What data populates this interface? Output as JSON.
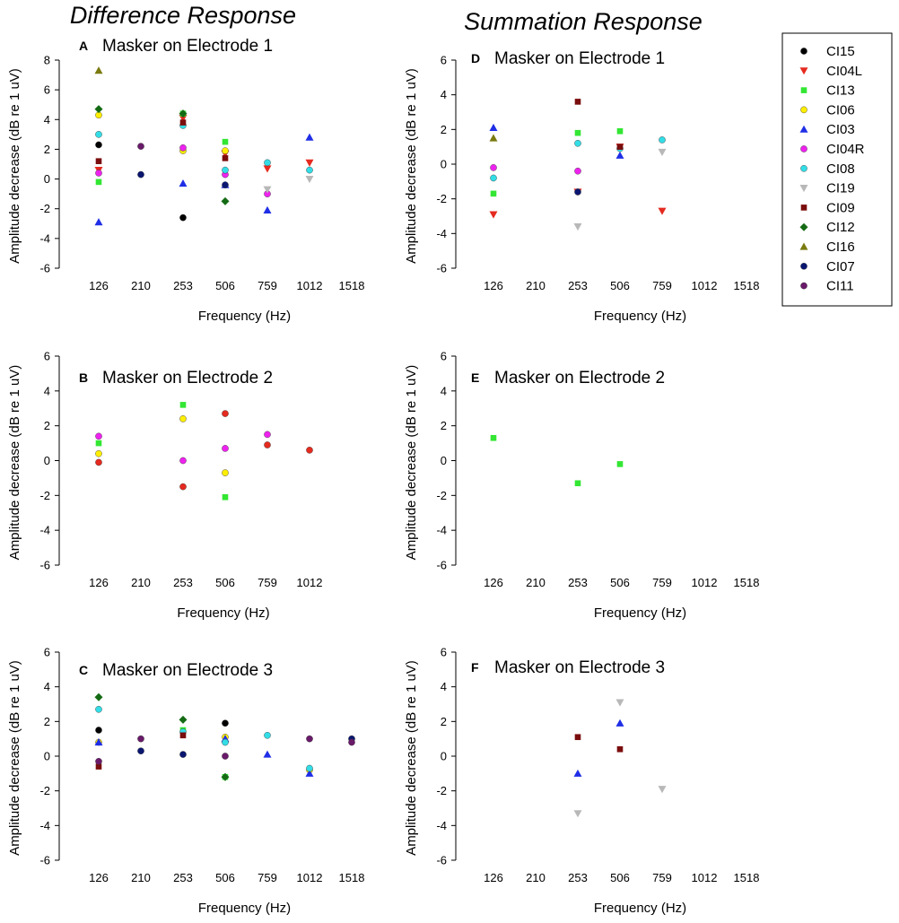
{
  "figure": {
    "column_titles": [
      "Difference Response",
      "Summation Response"
    ]
  },
  "legend": {
    "entries": [
      {
        "name": "CI15",
        "color": "#000000",
        "marker": "circle"
      },
      {
        "name": "CI04L",
        "color": "#e52a1f",
        "marker": "triangle-down"
      },
      {
        "name": "CI13",
        "color": "#33e633",
        "marker": "square"
      },
      {
        "name": "CI06",
        "color": "#ffee00",
        "marker": "circle"
      },
      {
        "name": "CI03",
        "color": "#1f2ee6",
        "marker": "triangle-up"
      },
      {
        "name": "CI04R",
        "color": "#ee22ee",
        "marker": "circle"
      },
      {
        "name": "CI08",
        "color": "#33dde6",
        "marker": "circle"
      },
      {
        "name": "CI19",
        "color": "#b8b8b8",
        "marker": "triangle-down"
      },
      {
        "name": "CI09",
        "color": "#7a0d0d",
        "marker": "square"
      },
      {
        "name": "CI12",
        "color": "#146b14",
        "marker": "diamond"
      },
      {
        "name": "CI16",
        "color": "#7a7a10",
        "marker": "triangle-up"
      },
      {
        "name": "CI07",
        "color": "#0a1670",
        "marker": "circle"
      },
      {
        "name": "CI11",
        "color": "#6a1a6a",
        "marker": "circle"
      }
    ]
  },
  "chart_data": [
    {
      "id": "A",
      "letter": "A",
      "title": "Masker on Electrode 1",
      "type": "scatter",
      "xlabel": "Frequency (Hz)",
      "ylabel": "Amplitude decrease (dB re 1 uV)",
      "categories": [
        "126",
        "210",
        "253",
        "506",
        "759",
        "1012",
        "1518"
      ],
      "ylim": [
        -6,
        8
      ],
      "yticks": [
        -6,
        -4,
        -2,
        0,
        2,
        4,
        6,
        8
      ],
      "series": [
        {
          "name": "CI15",
          "points": [
            [
              "126",
              2.3
            ],
            [
              "253",
              -2.6
            ]
          ]
        },
        {
          "name": "CI04L",
          "points": [
            [
              "126",
              0.6
            ],
            [
              "253",
              4.1
            ],
            [
              "506",
              1.7
            ],
            [
              "759",
              0.7
            ],
            [
              "1012",
              1.1
            ]
          ]
        },
        {
          "name": "CI13",
          "points": [
            [
              "126",
              -0.2
            ],
            [
              "253",
              4.4
            ],
            [
              "506",
              2.5
            ]
          ]
        },
        {
          "name": "CI06",
          "points": [
            [
              "126",
              4.3
            ],
            [
              "253",
              1.9
            ],
            [
              "506",
              1.9
            ]
          ]
        },
        {
          "name": "CI03",
          "points": [
            [
              "126",
              -2.9
            ],
            [
              "253",
              -0.3
            ],
            [
              "506",
              -0.4
            ],
            [
              "759",
              -2.1
            ],
            [
              "1012",
              2.8
            ]
          ]
        },
        {
          "name": "CI04R",
          "points": [
            [
              "126",
              0.4
            ],
            [
              "253",
              2.1
            ],
            [
              "506",
              0.3
            ],
            [
              "759",
              -1.0
            ]
          ]
        },
        {
          "name": "CI08",
          "points": [
            [
              "126",
              3.0
            ],
            [
              "253",
              3.6
            ],
            [
              "506",
              0.6
            ],
            [
              "759",
              1.1
            ],
            [
              "1012",
              0.6
            ]
          ]
        },
        {
          "name": "CI19",
          "points": [
            [
              "759",
              -0.7
            ],
            [
              "1012",
              0.0
            ]
          ]
        },
        {
          "name": "CI09",
          "points": [
            [
              "126",
              1.2
            ],
            [
              "253",
              3.8
            ],
            [
              "506",
              1.4
            ]
          ]
        },
        {
          "name": "CI12",
          "points": [
            [
              "126",
              4.7
            ],
            [
              "253",
              4.4
            ],
            [
              "506",
              -1.5
            ]
          ]
        },
        {
          "name": "CI16",
          "points": [
            [
              "126",
              7.3
            ]
          ]
        },
        {
          "name": "CI07",
          "points": [
            [
              "210",
              0.3
            ],
            [
              "506",
              -0.4
            ]
          ]
        },
        {
          "name": "CI11",
          "points": [
            [
              "210",
              2.2
            ]
          ]
        }
      ]
    },
    {
      "id": "B",
      "letter": "B",
      "title": "Masker on Electrode 2",
      "type": "scatter",
      "xlabel": "Frequency (Hz)",
      "ylabel": "Amplitude decrease (dB re 1 uV)",
      "categories": [
        "126",
        "210",
        "253",
        "506",
        "759",
        "1012"
      ],
      "ylim": [
        -6,
        6
      ],
      "yticks": [
        -6,
        -4,
        -2,
        0,
        2,
        4,
        6
      ],
      "series": [
        {
          "name": "CI13",
          "points": [
            [
              "126",
              1.0
            ],
            [
              "253",
              3.2
            ],
            [
              "506",
              -2.1
            ]
          ]
        },
        {
          "name": "CI06",
          "points": [
            [
              "126",
              0.4
            ],
            [
              "253",
              2.4
            ],
            [
              "506",
              -0.7
            ]
          ]
        },
        {
          "name": "CI04R",
          "points": [
            [
              "126",
              1.4
            ],
            [
              "253",
              0.0
            ],
            [
              "506",
              0.7
            ],
            [
              "759",
              1.5
            ]
          ]
        },
        {
          "name": "CI04L",
          "points": [
            [
              "126",
              -0.1
            ],
            [
              "253",
              -1.5
            ],
            [
              "506",
              2.7
            ],
            [
              "759",
              0.9
            ],
            [
              "1012",
              0.6
            ]
          ],
          "marker_override": "circle"
        }
      ]
    },
    {
      "id": "C",
      "letter": "C",
      "title": "Masker on Electrode 3",
      "type": "scatter",
      "xlabel": "Frequency (Hz)",
      "ylabel": "Amplitude decrease (dB re 1 uV)",
      "categories": [
        "126",
        "210",
        "253",
        "506",
        "759",
        "1012",
        "1518"
      ],
      "ylim": [
        -6,
        6
      ],
      "yticks": [
        -6,
        -4,
        -2,
        0,
        2,
        4,
        6
      ],
      "series": [
        {
          "name": "CI15",
          "points": [
            [
              "126",
              1.5
            ],
            [
              "506",
              1.9
            ]
          ]
        },
        {
          "name": "CI13",
          "points": [
            [
              "253",
              1.5
            ],
            [
              "506",
              -1.2
            ]
          ]
        },
        {
          "name": "CI06",
          "points": [
            [
              "126",
              0.8
            ],
            [
              "506",
              1.1
            ],
            [
              "1012",
              -0.8
            ]
          ]
        },
        {
          "name": "CI03",
          "points": [
            [
              "126",
              0.8
            ],
            [
              "506",
              1.0
            ],
            [
              "759",
              0.1
            ],
            [
              "1012",
              -1.0
            ]
          ]
        },
        {
          "name": "CI08",
          "points": [
            [
              "126",
              2.7
            ],
            [
              "253",
              1.4
            ],
            [
              "506",
              0.8
            ],
            [
              "759",
              1.2
            ],
            [
              "1012",
              -0.7
            ]
          ]
        },
        {
          "name": "CI09",
          "points": [
            [
              "126",
              -0.6
            ],
            [
              "253",
              1.2
            ]
          ]
        },
        {
          "name": "CI12",
          "points": [
            [
              "126",
              3.4
            ],
            [
              "253",
              2.1
            ],
            [
              "506",
              -1.2
            ]
          ]
        },
        {
          "name": "CI07",
          "points": [
            [
              "210",
              0.3
            ],
            [
              "253",
              0.1
            ],
            [
              "1518",
              1.0
            ]
          ]
        },
        {
          "name": "CI11",
          "points": [
            [
              "126",
              -0.3
            ],
            [
              "210",
              1.0
            ],
            [
              "506",
              0.0
            ],
            [
              "1012",
              1.0
            ],
            [
              "1518",
              0.8
            ]
          ]
        }
      ]
    },
    {
      "id": "D",
      "letter": "D",
      "title": "Masker on Electrode 1",
      "type": "scatter",
      "xlabel": "Frequency (Hz)",
      "ylabel": "Amplitude decrease (dB re 1 uV)",
      "categories": [
        "126",
        "210",
        "253",
        "506",
        "759",
        "1012",
        "1518"
      ],
      "ylim": [
        -6,
        6
      ],
      "yticks": [
        -6,
        -4,
        -2,
        0,
        2,
        4,
        6
      ],
      "series": [
        {
          "name": "CI04L",
          "points": [
            [
              "126",
              -2.9
            ],
            [
              "253",
              -1.6
            ],
            [
              "506",
              1.0
            ],
            [
              "759",
              -2.7
            ]
          ]
        },
        {
          "name": "CI13",
          "points": [
            [
              "126",
              -1.7
            ],
            [
              "253",
              1.8
            ],
            [
              "506",
              1.9
            ]
          ]
        },
        {
          "name": "CI03",
          "points": [
            [
              "126",
              2.1
            ],
            [
              "506",
              0.5
            ]
          ]
        },
        {
          "name": "CI04R",
          "points": [
            [
              "126",
              -0.2
            ],
            [
              "253",
              -0.4
            ]
          ]
        },
        {
          "name": "CI08",
          "points": [
            [
              "126",
              -0.8
            ],
            [
              "253",
              1.2
            ],
            [
              "506",
              0.9
            ],
            [
              "759",
              1.4
            ]
          ]
        },
        {
          "name": "CI19",
          "points": [
            [
              "253",
              -3.6
            ],
            [
              "759",
              0.7
            ]
          ]
        },
        {
          "name": "CI09",
          "points": [
            [
              "253",
              3.6
            ],
            [
              "506",
              1.0
            ]
          ]
        },
        {
          "name": "CI16",
          "points": [
            [
              "126",
              1.5
            ]
          ]
        },
        {
          "name": "CI07",
          "points": [
            [
              "253",
              -1.6
            ]
          ]
        }
      ]
    },
    {
      "id": "E",
      "letter": "E",
      "title": "Masker on Electrode 2",
      "type": "scatter",
      "xlabel": "Frequency (Hz)",
      "ylabel": "Amplitude decrease (dB re 1 uV)",
      "categories": [
        "126",
        "210",
        "253",
        "506",
        "759",
        "1012",
        "1518"
      ],
      "ylim": [
        -6,
        6
      ],
      "yticks": [
        -6,
        -4,
        -2,
        0,
        2,
        4,
        6
      ],
      "series": [
        {
          "name": "CI13",
          "points": [
            [
              "126",
              1.3
            ],
            [
              "253",
              -1.3
            ],
            [
              "506",
              -0.2
            ]
          ]
        }
      ]
    },
    {
      "id": "F",
      "letter": "F",
      "title": "Masker on Electrode 3",
      "type": "scatter",
      "xlabel": "Frequency (Hz)",
      "ylabel": "Amplitude decrease (dB re 1 uV)",
      "categories": [
        "126",
        "210",
        "253",
        "506",
        "759",
        "1012",
        "1518"
      ],
      "ylim": [
        -6,
        6
      ],
      "yticks": [
        -6,
        -4,
        -2,
        0,
        2,
        4,
        6
      ],
      "series": [
        {
          "name": "CI09",
          "points": [
            [
              "253",
              1.1
            ],
            [
              "506",
              0.4
            ]
          ]
        },
        {
          "name": "CI03",
          "points": [
            [
              "253",
              -1.0
            ],
            [
              "506",
              1.9
            ]
          ]
        },
        {
          "name": "CI19",
          "points": [
            [
              "253",
              -3.3
            ],
            [
              "506",
              3.1
            ],
            [
              "759",
              -1.9
            ]
          ]
        }
      ]
    }
  ]
}
